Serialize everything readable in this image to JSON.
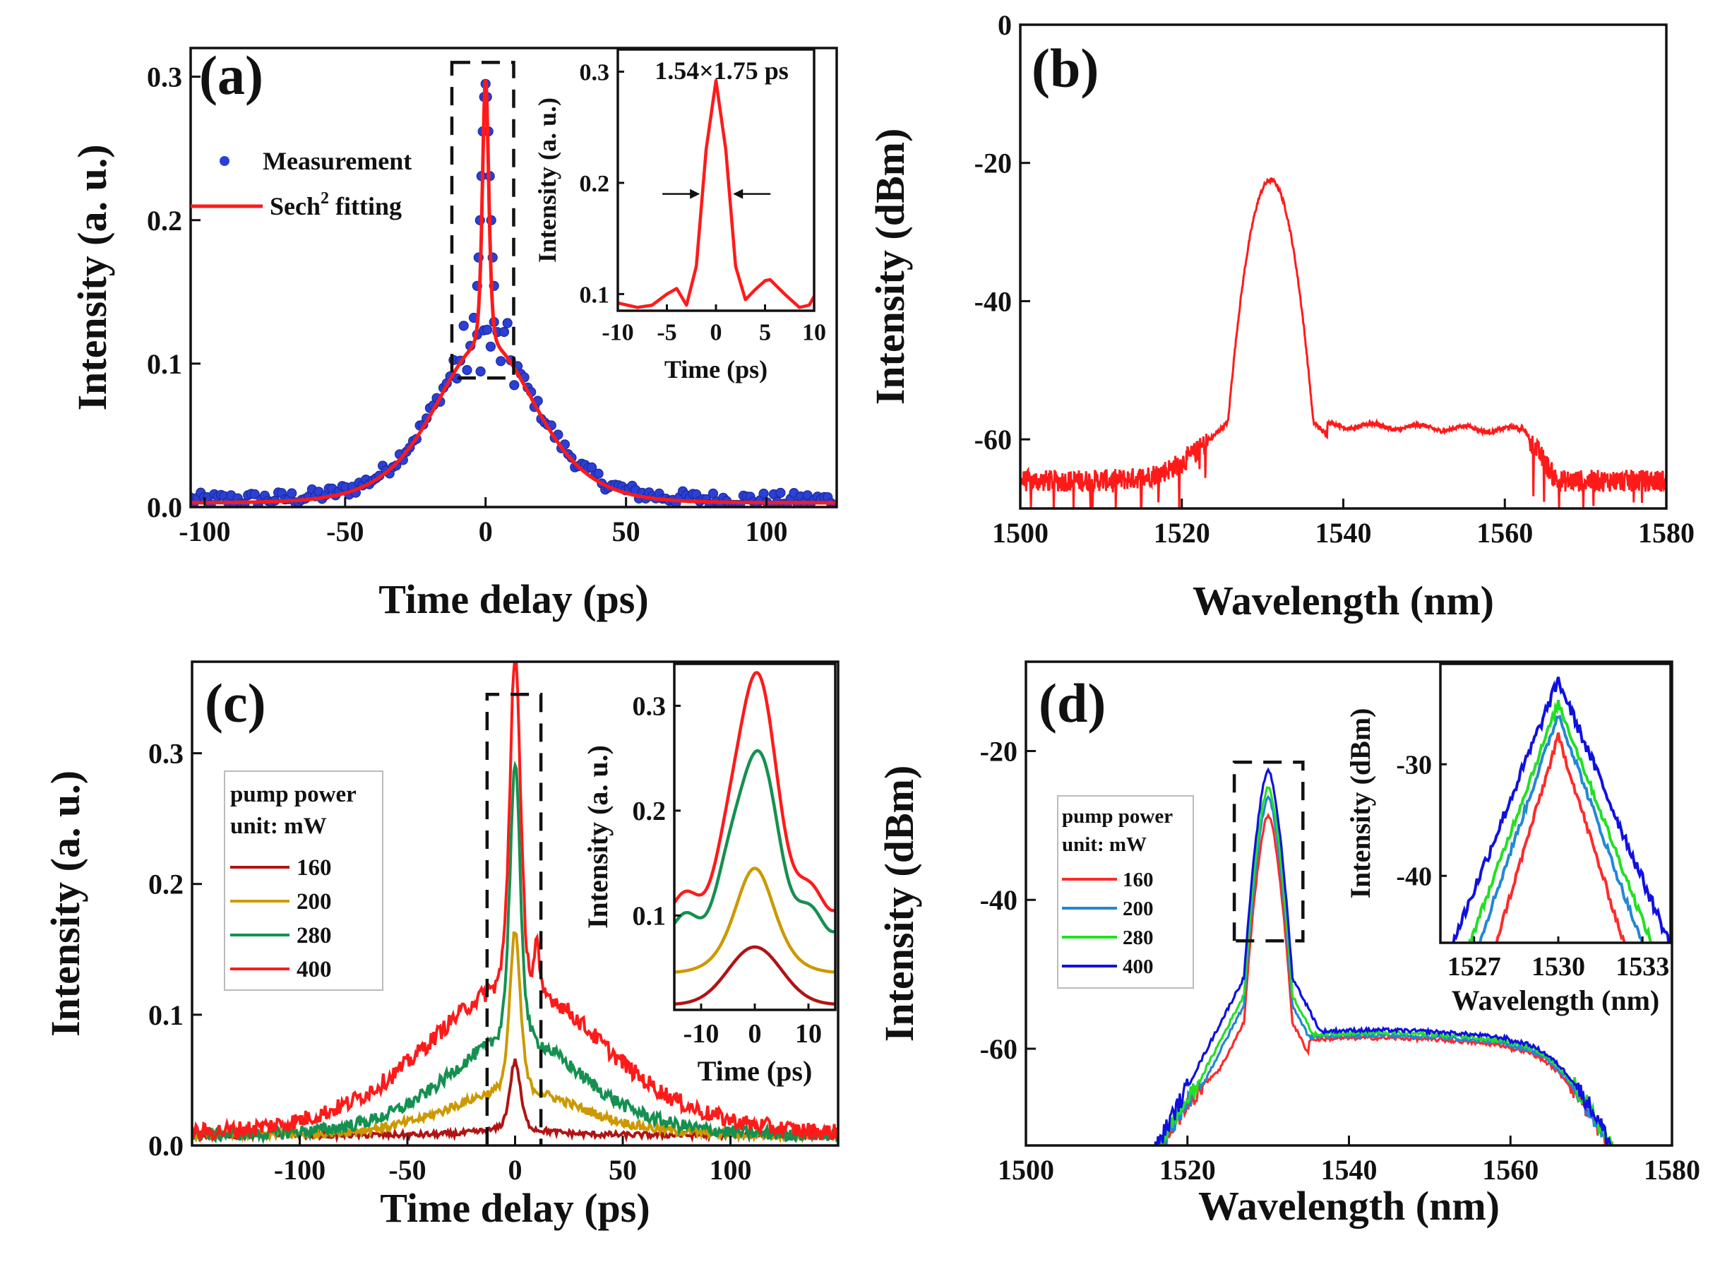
{
  "figure": {
    "panels": [
      "(a)",
      "(b)",
      "(c)",
      "(d)"
    ]
  },
  "colors": {
    "fit": "#ff1a1a",
    "measurement": "#2c3fd6",
    "p160": "#b01414",
    "p200": "#cc9900",
    "p280": "#159050",
    "p400": "#ff1a1a",
    "d160": "#ff2a2a",
    "d200": "#2288d6",
    "d280": "#22e022",
    "d400": "#1010e0"
  },
  "chart_data": [
    {
      "id": "a",
      "type": "scatter",
      "label": "(a)",
      "xlabel": "Time delay (ps)",
      "ylabel": "Intensity (a. u.)",
      "xlim": [
        -105,
        125
      ],
      "ylim": [
        0,
        0.32
      ],
      "xticks": [
        -100,
        -50,
        0,
        50,
        100
      ],
      "yticks": [
        0.0,
        0.1,
        0.2,
        0.3
      ],
      "yticklabels": [
        "0.0",
        "0.1",
        "0.2",
        "0.3"
      ],
      "legend": {
        "measurement": "Measurement",
        "fit_prefix": "Sech",
        "fit_sup": "2",
        "fit_suffix": " fitting"
      },
      "series": [
        {
          "name": "Measurement",
          "style": "points",
          "pedestal_peak": 0.112,
          "pedestal_width_ps": 24,
          "spike_peak": 0.295,
          "spike_width_ps": 1.5,
          "baseline": 0.005
        },
        {
          "name": "Sech2 fitting",
          "style": "line",
          "pedestal_peak": 0.112,
          "pedestal_width_ps": 24,
          "spike_peak": 0.295,
          "spike_width_ps": 1.5,
          "baseline": 0.003
        }
      ],
      "zoom_box_x": [
        -12,
        10
      ],
      "zoom_box_y": [
        0.09,
        0.31
      ],
      "inset": {
        "xlabel": "Time (ps)",
        "ylabel": "Intensity (a. u.)",
        "annotation": "1.54×1.75 ps",
        "xlim": [
          -10,
          10
        ],
        "ylim": [
          0.085,
          0.32
        ],
        "xticks": [
          -10,
          -5,
          0,
          5,
          10
        ],
        "yticks": [
          0.1,
          0.2,
          0.3
        ],
        "yticklabels": [
          "0.1",
          "0.2",
          "0.3"
        ],
        "points": [
          [
            -10,
            0.092
          ],
          [
            -8,
            0.088
          ],
          [
            -6.5,
            0.09
          ],
          [
            -5,
            0.1
          ],
          [
            -4,
            0.105
          ],
          [
            -3,
            0.09
          ],
          [
            -2,
            0.125
          ],
          [
            -1,
            0.23
          ],
          [
            0,
            0.292
          ],
          [
            1,
            0.23
          ],
          [
            2,
            0.125
          ],
          [
            3,
            0.095
          ],
          [
            4,
            0.104
          ],
          [
            5,
            0.112
          ],
          [
            5.5,
            0.113
          ],
          [
            7,
            0.1
          ],
          [
            8.5,
            0.088
          ],
          [
            9.5,
            0.09
          ],
          [
            10,
            0.098
          ]
        ],
        "fwhm_arrow_y": 0.19,
        "fwhm_x": [
          -1.5,
          1.6
        ]
      }
    },
    {
      "id": "b",
      "type": "line",
      "label": "(b)",
      "xlabel": "Wavelength (nm)",
      "ylabel": "Intensity (dBm)",
      "xlim": [
        1500,
        1580
      ],
      "ylim": [
        -70,
        0
      ],
      "xticks": [
        1500,
        1520,
        1540,
        1560,
        1580
      ],
      "yticks": [
        0,
        -20,
        -40,
        -60
      ],
      "peak_wavelength_nm": 1531,
      "peak_dbm": -22.5,
      "shoulder_dbm": -58,
      "noise_floor_dbm": -67
    },
    {
      "id": "c",
      "type": "line",
      "label": "(c)",
      "xlabel": "Time delay (ps)",
      "ylabel": "Intensity (a. u.)",
      "xlim": [
        -150,
        150
      ],
      "ylim": [
        0,
        0.37
      ],
      "xticks": [
        -100,
        -50,
        0,
        50,
        100
      ],
      "yticks": [
        0.0,
        0.1,
        0.2,
        0.3
      ],
      "yticklabels": [
        "0.0",
        "0.1",
        "0.2",
        "0.3"
      ],
      "legend_title": [
        "pump power",
        "unit: mW"
      ],
      "series": [
        {
          "name": "160",
          "spike": 0.055,
          "pedestal": 0.005,
          "pedestal_width_ps": 20
        },
        {
          "name": "200",
          "spike": 0.145,
          "pedestal": 0.035,
          "pedestal_width_ps": 40
        },
        {
          "name": "280",
          "spike": 0.26,
          "pedestal": 0.075,
          "pedestal_width_ps": 42
        },
        {
          "name": "400",
          "spike": 0.335,
          "pedestal": 0.115,
          "pedestal_width_ps": 55
        }
      ],
      "inset": {
        "xlabel": "Time (ps)",
        "ylabel": "Intensity (a. u.)",
        "xlim": [
          -15,
          15
        ],
        "ylim": [
          0.01,
          0.34
        ],
        "xticks": [
          -10,
          0,
          10
        ],
        "yticks": [
          0.1,
          0.2,
          0.3
        ],
        "yticklabels": [
          "0.1",
          "0.2",
          "0.3"
        ]
      }
    },
    {
      "id": "d",
      "type": "line",
      "label": "(d)",
      "xlabel": "Wavelength (nm)",
      "ylabel": "Intensity (dBm)",
      "xlim": [
        1500,
        1580
      ],
      "ylim": [
        -73,
        -8
      ],
      "xticks": [
        1500,
        1520,
        1540,
        1560,
        1580
      ],
      "yticks": [
        -20,
        -40,
        -60
      ],
      "legend_title": [
        "pump power",
        "unit: mW"
      ],
      "series": [
        {
          "name": "160",
          "peak_dbm": -27.5
        },
        {
          "name": "200",
          "peak_dbm": -25.5
        },
        {
          "name": "280",
          "peak_dbm": -24.5
        },
        {
          "name": "400",
          "peak_dbm": -22.5
        }
      ],
      "inset": {
        "xlabel": "Wavelength (nm)",
        "ylabel": "Intensity (dBm)",
        "xlim": [
          1525.8,
          1534
        ],
        "ylim": [
          -46,
          -21
        ],
        "xticks": [
          1527,
          1530,
          1533
        ],
        "yticks": [
          -30,
          -40
        ]
      }
    }
  ]
}
